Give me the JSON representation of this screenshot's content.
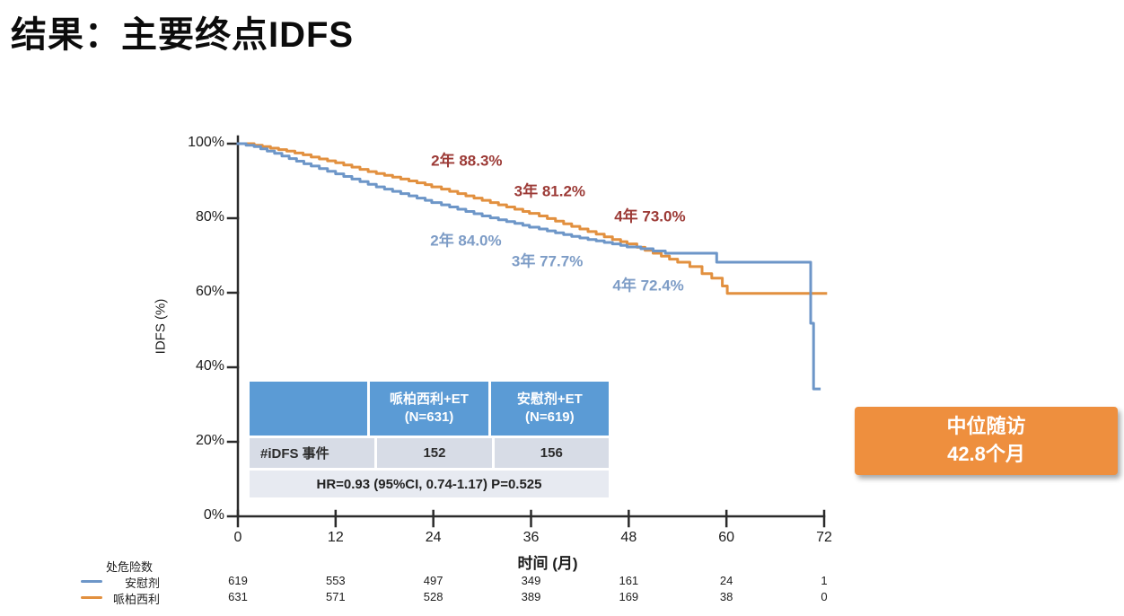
{
  "title": "结果：主要终点IDFS",
  "colors": {
    "placebo_blue": "#6d96c8",
    "palbo_orange": "#e2903f",
    "annotation_red": "#9c3a36",
    "annotation_blue": "#7d9cc6",
    "table_header_blue": "#5b9bd5",
    "callout_orange": "#ee8f3e",
    "axis": "#2b2b2b"
  },
  "chart_data": {
    "type": "line",
    "subtype": "kaplan-meier-step",
    "xlabel": "时间 (月)",
    "ylabel": "IDFS (%)",
    "xlim": [
      0,
      72
    ],
    "ylim": [
      0,
      100
    ],
    "x_ticks": [
      0,
      12,
      24,
      36,
      48,
      60,
      72
    ],
    "y_ticks": [
      0,
      20,
      40,
      60,
      80,
      100
    ],
    "y_tick_suffix": "%",
    "grid": false,
    "series": [
      {
        "name": "哌柏西利",
        "color": "#e2903f",
        "step": "after",
        "points": [
          [
            0,
            100
          ],
          [
            2,
            99.6
          ],
          [
            3,
            99.2
          ],
          [
            4,
            98.8
          ],
          [
            5,
            98.4
          ],
          [
            6,
            98.0
          ],
          [
            7,
            97.5
          ],
          [
            8,
            97.0
          ],
          [
            9,
            96.4
          ],
          [
            10,
            95.9
          ],
          [
            11,
            95.4
          ],
          [
            12,
            94.9
          ],
          [
            13,
            94.3
          ],
          [
            14,
            93.7
          ],
          [
            15,
            93.1
          ],
          [
            16,
            92.5
          ],
          [
            17,
            92.0
          ],
          [
            18,
            91.5
          ],
          [
            19,
            91.0
          ],
          [
            20,
            90.5
          ],
          [
            21,
            90.0
          ],
          [
            22,
            89.5
          ],
          [
            23,
            89.0
          ],
          [
            23.8,
            88.4
          ],
          [
            25,
            87.8
          ],
          [
            26,
            87.2
          ],
          [
            27,
            86.6
          ],
          [
            28,
            86.0
          ],
          [
            29,
            85.4
          ],
          [
            30,
            84.8
          ],
          [
            31,
            84.2
          ],
          [
            32,
            83.6
          ],
          [
            33,
            83.0
          ],
          [
            34,
            82.4
          ],
          [
            35,
            81.8
          ],
          [
            35.8,
            81.3
          ],
          [
            37,
            80.6
          ],
          [
            38,
            79.9
          ],
          [
            39,
            79.2
          ],
          [
            40,
            78.5
          ],
          [
            41,
            77.8
          ],
          [
            42,
            77.1
          ],
          [
            43,
            76.4
          ],
          [
            44,
            75.7
          ],
          [
            45,
            75.0
          ],
          [
            46,
            74.3
          ],
          [
            47,
            73.7
          ],
          [
            47.8,
            73.1
          ],
          [
            49,
            72.2
          ],
          [
            50,
            71.4
          ],
          [
            51,
            70.6
          ],
          [
            52,
            69.8
          ],
          [
            53,
            69.0
          ],
          [
            54,
            68.2
          ],
          [
            55.5,
            67.0
          ],
          [
            57,
            65.1
          ],
          [
            58.2,
            63.9
          ],
          [
            59.5,
            61.8
          ],
          [
            60.1,
            59.8
          ],
          [
            72.2,
            59.8
          ]
        ],
        "milestones": {
          "2年": "88.3%",
          "3年": "81.2%",
          "4年": "73.0%"
        }
      },
      {
        "name": "安慰剂",
        "color": "#6d96c8",
        "step": "after",
        "points": [
          [
            0,
            100
          ],
          [
            1,
            99.6
          ],
          [
            2,
            99.2
          ],
          [
            2.8,
            98.6
          ],
          [
            3.6,
            98.0
          ],
          [
            4.5,
            97.4
          ],
          [
            5.4,
            96.7
          ],
          [
            6.3,
            96.0
          ],
          [
            7.2,
            95.3
          ],
          [
            8.1,
            94.6
          ],
          [
            9,
            94.0
          ],
          [
            10,
            93.3
          ],
          [
            11,
            92.6
          ],
          [
            12,
            91.9
          ],
          [
            13,
            91.2
          ],
          [
            14,
            90.5
          ],
          [
            15,
            89.8
          ],
          [
            16,
            89.1
          ],
          [
            17,
            88.4
          ],
          [
            18,
            87.8
          ],
          [
            19,
            87.2
          ],
          [
            20,
            86.6
          ],
          [
            21,
            86.0
          ],
          [
            22,
            85.4
          ],
          [
            23,
            84.8
          ],
          [
            23.8,
            84.2
          ],
          [
            25,
            83.6
          ],
          [
            26,
            83.0
          ],
          [
            27,
            82.4
          ],
          [
            28,
            81.8
          ],
          [
            29,
            81.2
          ],
          [
            30,
            80.6
          ],
          [
            31,
            80.1
          ],
          [
            32,
            79.6
          ],
          [
            33,
            79.1
          ],
          [
            34,
            78.6
          ],
          [
            35,
            78.1
          ],
          [
            35.8,
            77.6
          ],
          [
            37,
            77.1
          ],
          [
            38,
            76.6
          ],
          [
            39,
            76.1
          ],
          [
            40,
            75.6
          ],
          [
            41,
            75.1
          ],
          [
            42,
            74.7
          ],
          [
            43,
            74.3
          ],
          [
            44,
            73.9
          ],
          [
            45,
            73.5
          ],
          [
            46,
            73.1
          ],
          [
            47,
            72.7
          ],
          [
            47.8,
            72.3
          ],
          [
            49.5,
            71.8
          ],
          [
            51,
            71.2
          ],
          [
            52.5,
            70.6
          ],
          [
            58.8,
            68.2
          ],
          [
            70.1,
            68.2
          ],
          [
            70.35,
            51.8
          ],
          [
            70.7,
            34.2
          ],
          [
            71.4,
            34.2
          ]
        ],
        "milestones": {
          "2年": "84.0%",
          "3年": "77.7%",
          "4年": "72.4%"
        }
      }
    ],
    "annotations": [
      {
        "text": "2年 88.3%",
        "month": 28.1,
        "pct": 95.9,
        "color": "#9c3a36"
      },
      {
        "text": "3年 81.2%",
        "month": 38.3,
        "pct": 87.7,
        "color": "#9c3a36"
      },
      {
        "text": "4年 73.0%",
        "month": 50.6,
        "pct": 81.0,
        "color": "#9c3a36"
      },
      {
        "text": "2年 84.0%",
        "month": 28.0,
        "pct": 74.5,
        "color": "#7d9cc6"
      },
      {
        "text": "3年 77.7%",
        "month": 38.0,
        "pct": 68.9,
        "color": "#7d9cc6"
      },
      {
        "text": "4年 72.4%",
        "month": 50.4,
        "pct": 62.4,
        "color": "#7d9cc6"
      }
    ]
  },
  "stats_table": {
    "corner": "",
    "col1": {
      "l1": "哌柏西利+ET",
      "l2": "(N=631)"
    },
    "col2": {
      "l1": "安慰剂+ET",
      "l2": "(N=619)"
    },
    "row_label": "#iDFS 事件",
    "v1": "152",
    "v2": "156",
    "footer": "HR=0.93 (95%CI, 0.74-1.17) P=0.525"
  },
  "callout": {
    "line1": "中位随访",
    "line2": "42.8个月"
  },
  "at_risk": {
    "header": "处危险数",
    "months": [
      0,
      12,
      24,
      36,
      48,
      60,
      72
    ],
    "rows": [
      {
        "name": "安慰剂",
        "color": "#6d96c8",
        "values": [
          619,
          553,
          497,
          349,
          161,
          24,
          1
        ]
      },
      {
        "name": "哌柏西利",
        "color": "#e2903f",
        "values": [
          631,
          571,
          528,
          389,
          169,
          38,
          0
        ]
      }
    ]
  }
}
